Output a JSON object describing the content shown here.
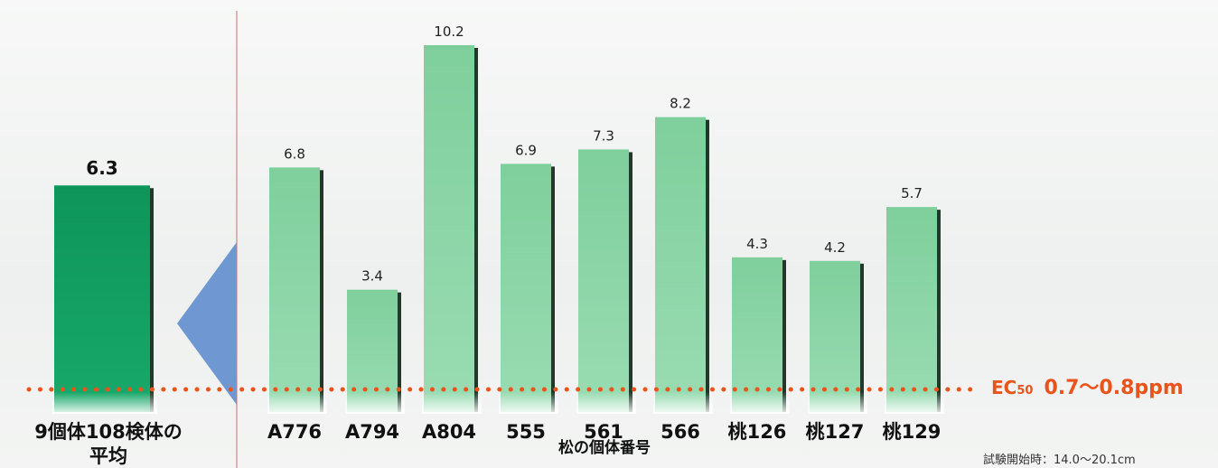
{
  "chart_data": {
    "type": "bar",
    "categories": [
      "A776",
      "A794",
      "A804",
      "555",
      "561",
      "566",
      "桃126",
      "桃127",
      "桃129"
    ],
    "values": [
      6.8,
      3.4,
      10.2,
      6.9,
      7.3,
      8.2,
      4.3,
      4.2,
      5.7
    ],
    "value_labels": [
      "6.8",
      "3.4",
      "10.2",
      "6.9",
      "7.3",
      "8.2",
      "4.3",
      "4.2",
      "5.7"
    ],
    "xlabel": "松の個体番号",
    "ylim": [
      0,
      10.2
    ],
    "average": {
      "value": 6.3,
      "value_label": "6.3",
      "label_line1": "9個体108検体の",
      "label_line2": "平均"
    },
    "reference_line": {
      "value": 0.7,
      "label_main": "EC",
      "label_sub": "50",
      "label_range": "0.7〜0.8ppm",
      "color": "#e8541b",
      "style": "dotted"
    },
    "footnote": "試験開始時：14.0〜20.1cm",
    "colors": {
      "bar": "#86d2a2",
      "bar_shadow": "#1f3a2a",
      "average_bar": "#0f9a5e",
      "arrow": "#6f97d2",
      "divider": "#c98a8a"
    }
  }
}
